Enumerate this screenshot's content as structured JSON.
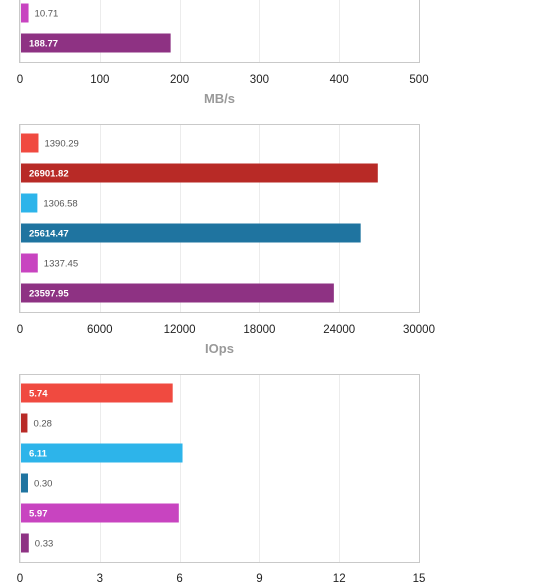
{
  "chart_data": [
    {
      "type": "bar",
      "orientation": "horizontal",
      "xlabel": "MB/s",
      "xlim": [
        0,
        500
      ],
      "ticks": [
        0,
        100,
        200,
        300,
        400,
        500
      ],
      "grid": true,
      "bars": [
        {
          "value": 10.71,
          "label": "10.71",
          "color": "#c844c0"
        },
        {
          "value": 188.77,
          "label": "188.77",
          "color": "#8e3283"
        }
      ]
    },
    {
      "type": "bar",
      "orientation": "horizontal",
      "xlabel": "IOps",
      "xlim": [
        0,
        30000
      ],
      "ticks": [
        0,
        6000,
        12000,
        18000,
        24000,
        30000
      ],
      "grid": true,
      "bars": [
        {
          "value": 1390.29,
          "label": "1390.29",
          "color": "#f04a40"
        },
        {
          "value": 26901.82,
          "label": "26901.82",
          "color": "#b82a26"
        },
        {
          "value": 1306.58,
          "label": "1306.58",
          "color": "#2db4ea"
        },
        {
          "value": 25614.47,
          "label": "25614.47",
          "color": "#1f74a0"
        },
        {
          "value": 1337.45,
          "label": "1337.45",
          "color": "#c844c0"
        },
        {
          "value": 23597.95,
          "label": "23597.95",
          "color": "#8e3283"
        }
      ]
    },
    {
      "type": "bar",
      "orientation": "horizontal",
      "xlabel": "",
      "xlim": [
        0,
        15
      ],
      "ticks": [
        0,
        3,
        6,
        9,
        12,
        15
      ],
      "grid": true,
      "bars": [
        {
          "value": 5.74,
          "label": "5.74",
          "color": "#f04a40"
        },
        {
          "value": 0.28,
          "label": "0.28",
          "color": "#b82a26"
        },
        {
          "value": 6.11,
          "label": "6.11",
          "color": "#2db4ea"
        },
        {
          "value": 0.3,
          "label": "0.30",
          "color": "#1f74a0"
        },
        {
          "value": 5.97,
          "label": "5.97",
          "color": "#c844c0"
        },
        {
          "value": 0.33,
          "label": "0.33",
          "color": "#8e3283"
        }
      ]
    }
  ]
}
